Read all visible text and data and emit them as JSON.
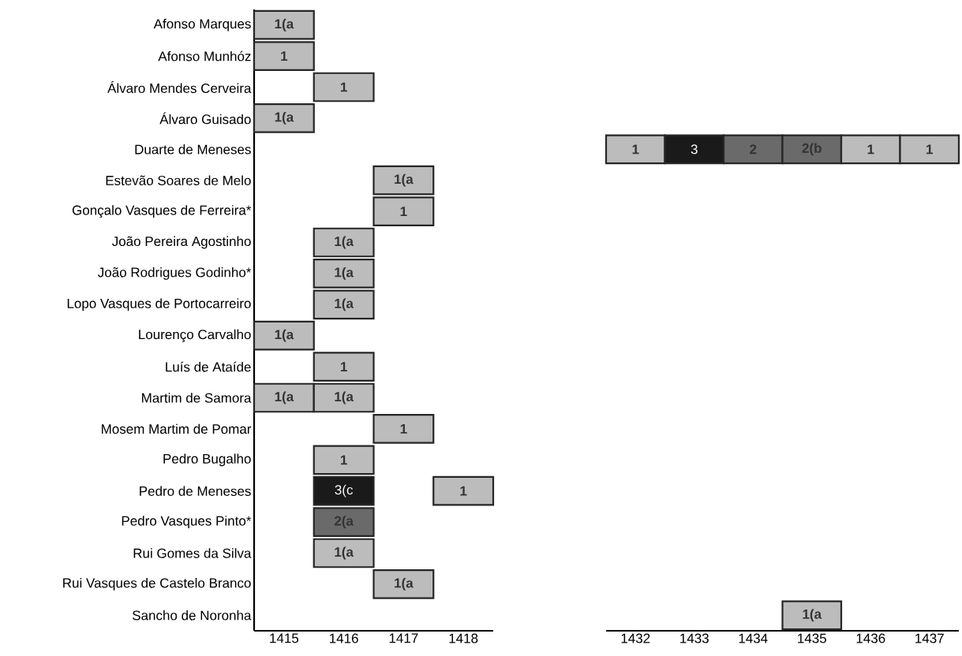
{
  "chart_data": {
    "type": "heatmap",
    "categories": [
      "1415",
      "1416",
      "1417",
      "1418",
      "1432",
      "1433",
      "1434",
      "1435",
      "1436",
      "1437"
    ],
    "y_categories": [
      "Afonso Marques",
      "Afonso Munhóz",
      "Álvaro Mendes Cerveira",
      "Álvaro Guisado",
      "Duarte de Meneses",
      "Estevão Soares de Melo",
      "Gonçalo Vasques de Ferreira*",
      "João Pereira Agostinho",
      "João Rodrigues Godinho*",
      "Lopo Vasques de Portocarreiro",
      "Lourenço Carvalho",
      "Luís de Ataíde",
      "Martim de Samora",
      "Mosem Martim de Pomar",
      "Pedro Bugalho",
      "Pedro de Meneses",
      "Pedro Vasques Pinto*",
      "Rui Gomes da Silva",
      "Rui Vasques de Castelo Branco",
      "Sancho de Noronha"
    ],
    "colors": [
      "#bcbcbc",
      "#6a6a6a",
      "#1a1a1a"
    ],
    "cells": [
      [
        1,
        null,
        null,
        null,
        null,
        null,
        null,
        null,
        null,
        null
      ],
      [
        1,
        null,
        null,
        null,
        null,
        null,
        null,
        null,
        null,
        null
      ],
      [
        null,
        1,
        null,
        null,
        null,
        null,
        null,
        null,
        null,
        null
      ],
      [
        1,
        null,
        null,
        null,
        null,
        null,
        null,
        null,
        null,
        null
      ],
      [
        null,
        null,
        null,
        null,
        1,
        3,
        2,
        2,
        1,
        1
      ],
      [
        null,
        null,
        1,
        null,
        null,
        null,
        null,
        null,
        null,
        null
      ],
      [
        null,
        null,
        1,
        null,
        null,
        null,
        null,
        null,
        null,
        null
      ],
      [
        null,
        1,
        null,
        null,
        null,
        null,
        null,
        null,
        null,
        null
      ],
      [
        null,
        1,
        null,
        null,
        null,
        null,
        null,
        null,
        null,
        null
      ],
      [
        null,
        1,
        null,
        null,
        null,
        null,
        null,
        null,
        null,
        null
      ],
      [
        1,
        null,
        null,
        null,
        null,
        null,
        null,
        null,
        null,
        null
      ],
      [
        null,
        1,
        null,
        null,
        null,
        null,
        null,
        null,
        null,
        null
      ],
      [
        1,
        1,
        null,
        null,
        null,
        null,
        null,
        null,
        null,
        null
      ],
      [
        null,
        null,
        1,
        null,
        null,
        null,
        null,
        null,
        null,
        null
      ],
      [
        null,
        1,
        null,
        null,
        null,
        null,
        null,
        null,
        null,
        null
      ],
      [
        null,
        3,
        null,
        1,
        null,
        null,
        null,
        null,
        null,
        null
      ],
      [
        null,
        2,
        null,
        null,
        null,
        null,
        null,
        null,
        null,
        null
      ],
      [
        null,
        1,
        null,
        null,
        null,
        null,
        null,
        null,
        null,
        null
      ],
      [
        null,
        null,
        1,
        null,
        null,
        null,
        null,
        null,
        null,
        null
      ],
      [
        null,
        null,
        null,
        null,
        null,
        null,
        null,
        1,
        null,
        null
      ]
    ],
    "cell_labels": [
      [
        "1(a",
        null,
        null,
        null,
        null,
        null,
        null,
        null,
        null,
        null
      ],
      [
        "1",
        null,
        null,
        null,
        null,
        null,
        null,
        null,
        null,
        null
      ],
      [
        null,
        "1",
        null,
        null,
        null,
        null,
        null,
        null,
        null,
        null
      ],
      [
        "1(a",
        null,
        null,
        null,
        null,
        null,
        null,
        null,
        null,
        null
      ],
      [
        null,
        null,
        null,
        null,
        "1",
        "3",
        "2",
        "2(b",
        "1",
        "1"
      ],
      [
        null,
        null,
        "1(a",
        null,
        null,
        null,
        null,
        null,
        null,
        null
      ],
      [
        null,
        null,
        "1",
        null,
        null,
        null,
        null,
        null,
        null,
        null
      ],
      [
        null,
        "1(a",
        null,
        null,
        null,
        null,
        null,
        null,
        null,
        null
      ],
      [
        null,
        "1(a",
        null,
        null,
        null,
        null,
        null,
        null,
        null,
        null
      ],
      [
        null,
        "1(a",
        null,
        null,
        null,
        null,
        null,
        null,
        null,
        null
      ],
      [
        "1(a",
        null,
        null,
        null,
        null,
        null,
        null,
        null,
        null,
        null
      ],
      [
        null,
        "1",
        null,
        null,
        null,
        null,
        null,
        null,
        null,
        null
      ],
      [
        "1(a",
        "1(a",
        null,
        null,
        null,
        null,
        null,
        null,
        null,
        null
      ],
      [
        null,
        null,
        "1",
        null,
        null,
        null,
        null,
        null,
        null,
        null
      ],
      [
        null,
        "1",
        null,
        null,
        null,
        null,
        null,
        null,
        null,
        null
      ],
      [
        null,
        "3(c",
        null,
        "1",
        null,
        null,
        null,
        null,
        null,
        null
      ],
      [
        null,
        "2(a",
        null,
        null,
        null,
        null,
        null,
        null,
        null,
        null
      ],
      [
        null,
        "1(a",
        null,
        null,
        null,
        null,
        null,
        null,
        null,
        null
      ],
      [
        null,
        null,
        "1(a",
        null,
        null,
        null,
        null,
        null,
        null,
        null
      ],
      [
        null,
        null,
        null,
        null,
        null,
        null,
        null,
        "1(a",
        null,
        null
      ]
    ]
  }
}
